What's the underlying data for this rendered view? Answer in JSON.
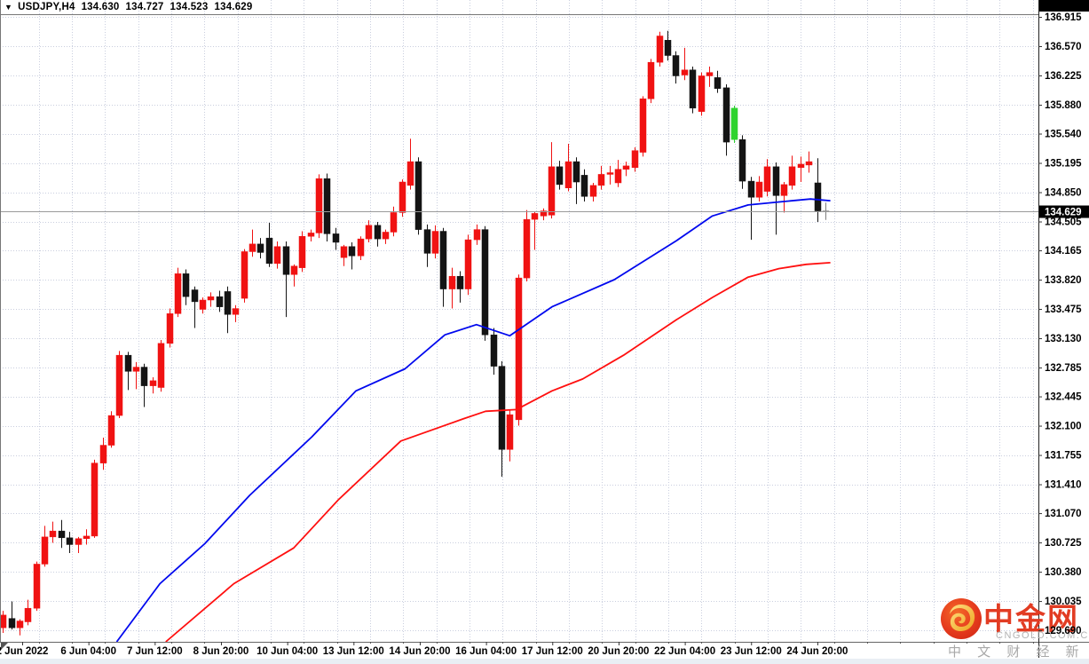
{
  "title": {
    "dropdown_icon": "▼",
    "symbol": "USDJPY,H4",
    "open": "134.630",
    "high": "134.727",
    "low": "134.523",
    "close": "134.629"
  },
  "price_axis": {
    "labels": [
      "136.915",
      "136.570",
      "136.225",
      "135.880",
      "135.540",
      "135.195",
      "134.850",
      "134.505",
      "134.165",
      "133.820",
      "133.475",
      "133.130",
      "132.785",
      "132.445",
      "132.100",
      "131.755",
      "131.410",
      "131.070",
      "130.725",
      "130.380",
      "130.035",
      "129.690"
    ],
    "current_price_tag": "134.629"
  },
  "time_axis": {
    "labels": [
      "2 Jun 2022",
      "6 Jun 04:00",
      "7 Jun 12:00",
      "8 Jun 20:00",
      "10 Jun 04:00",
      "13 Jun 12:00",
      "14 Jun 20:00",
      "16 Jun 04:00",
      "17 Jun 12:00",
      "20 Jun 20:00",
      "22 Jun 04:00",
      "23 Jun 12:00",
      "24 Jun 20:00"
    ]
  },
  "watermark": {
    "brand": "中金网",
    "domain": "CNGOLD.COM.CN",
    "tagline": "中 文 财 经 新 媒 体"
  },
  "colors": {
    "up_candle": "#f01212",
    "down_candle": "#141414",
    "special_candle": "#2fd32f",
    "doji_candle": "#808080",
    "ma_fast": "#0008ee",
    "ma_slow": "#ff0f0f",
    "grid": "#c9cede",
    "border": "#777777",
    "current_price_line": "#9a9a9a",
    "tag_bg": "#000000",
    "tag_text": "#ffffff",
    "brand_red": "#e23c23",
    "grey_text": "#b2b2b2",
    "bottom_strip": "#e9eef4"
  },
  "chart_data": {
    "type": "candlestick",
    "symbol": "USDJPY",
    "timeframe": "H4",
    "price_range": [
      129.55,
      136.96
    ],
    "date_range": [
      "2 Jun 2022",
      "24 Jun 2022 20:00"
    ],
    "grid": true,
    "candles": [
      [
        129.72,
        129.92,
        129.66,
        129.87
      ],
      [
        129.83,
        130.03,
        129.7,
        129.72
      ],
      [
        129.72,
        129.82,
        129.63,
        129.8
      ],
      [
        129.79,
        130.05,
        129.75,
        129.95
      ],
      [
        129.95,
        130.5,
        129.92,
        130.47
      ],
      [
        130.47,
        130.92,
        130.44,
        130.79
      ],
      [
        130.79,
        130.97,
        130.72,
        130.86
      ],
      [
        130.86,
        130.99,
        130.66,
        130.78
      ],
      [
        130.78,
        130.85,
        130.6,
        130.7
      ],
      [
        130.7,
        130.79,
        130.6,
        130.77
      ],
      [
        130.77,
        130.88,
        130.7,
        130.8
      ],
      [
        130.8,
        131.7,
        130.78,
        131.66
      ],
      [
        131.66,
        131.96,
        131.58,
        131.87
      ],
      [
        131.87,
        132.27,
        131.84,
        132.22
      ],
      [
        132.22,
        132.98,
        132.19,
        132.93
      ],
      [
        132.93,
        132.97,
        132.52,
        132.74
      ],
      [
        132.74,
        132.85,
        132.53,
        132.79
      ],
      [
        132.79,
        132.83,
        132.32,
        132.57
      ],
      [
        132.57,
        132.67,
        132.48,
        132.63
      ],
      [
        132.55,
        133.11,
        132.5,
        133.07
      ],
      [
        133.07,
        133.48,
        133.02,
        133.42
      ],
      [
        133.42,
        133.96,
        133.38,
        133.89
      ],
      [
        133.89,
        133.94,
        133.52,
        133.62
      ],
      [
        133.7,
        133.74,
        133.25,
        133.56
      ],
      [
        133.47,
        133.61,
        133.42,
        133.58
      ],
      [
        133.58,
        133.67,
        133.5,
        133.62
      ],
      [
        133.62,
        133.69,
        133.44,
        133.5
      ],
      [
        133.68,
        133.74,
        133.19,
        133.41
      ],
      [
        133.41,
        133.52,
        133.32,
        133.48
      ],
      [
        133.6,
        134.18,
        133.55,
        134.15
      ],
      [
        134.15,
        134.41,
        134.09,
        134.24
      ],
      [
        134.24,
        134.31,
        134.07,
        134.14
      ],
      [
        134.31,
        134.49,
        133.97,
        134.01
      ],
      [
        134.01,
        134.27,
        133.95,
        134.21
      ],
      [
        134.21,
        134.27,
        133.38,
        133.88
      ],
      [
        133.88,
        134.0,
        133.74,
        133.98
      ],
      [
        133.96,
        134.39,
        133.91,
        134.33
      ],
      [
        134.33,
        134.41,
        134.27,
        134.37
      ],
      [
        134.37,
        135.06,
        134.31,
        135.01
      ],
      [
        135.01,
        135.07,
        134.27,
        134.36
      ],
      [
        134.36,
        134.43,
        134.17,
        134.26
      ],
      [
        134.08,
        134.23,
        133.98,
        134.21
      ],
      [
        134.21,
        134.26,
        133.94,
        134.1
      ],
      [
        134.1,
        134.33,
        134.05,
        134.3
      ],
      [
        134.3,
        134.52,
        134.26,
        134.46
      ],
      [
        134.46,
        134.5,
        134.21,
        134.3
      ],
      [
        134.3,
        134.41,
        134.24,
        134.38
      ],
      [
        134.38,
        134.68,
        134.33,
        134.61
      ],
      [
        134.61,
        135.0,
        134.56,
        134.97
      ],
      [
        134.93,
        135.48,
        134.88,
        135.21
      ],
      [
        135.21,
        135.26,
        134.35,
        134.41
      ],
      [
        134.41,
        134.47,
        133.97,
        134.13
      ],
      [
        134.13,
        134.46,
        134.07,
        134.39
      ],
      [
        134.39,
        134.43,
        133.5,
        133.71
      ],
      [
        133.71,
        133.96,
        133.48,
        133.86
      ],
      [
        133.86,
        133.92,
        133.55,
        133.71
      ],
      [
        133.71,
        134.35,
        133.64,
        134.29
      ],
      [
        134.29,
        134.47,
        134.23,
        134.41
      ],
      [
        134.41,
        134.45,
        133.1,
        133.17
      ],
      [
        133.17,
        133.25,
        132.7,
        132.8
      ],
      [
        132.8,
        132.86,
        131.5,
        131.82
      ],
      [
        131.82,
        132.28,
        131.68,
        132.23
      ],
      [
        132.17,
        133.88,
        132.1,
        133.84
      ],
      [
        133.84,
        134.64,
        133.8,
        134.53
      ],
      [
        134.53,
        134.62,
        134.17,
        134.6
      ],
      [
        134.57,
        134.66,
        134.52,
        134.63
      ],
      [
        134.58,
        135.44,
        134.54,
        135.15
      ],
      [
        135.15,
        135.22,
        134.88,
        134.94
      ],
      [
        134.9,
        135.42,
        134.86,
        135.21
      ],
      [
        135.21,
        135.26,
        134.71,
        134.97
      ],
      [
        135.05,
        135.12,
        134.74,
        134.8
      ],
      [
        134.8,
        134.96,
        134.74,
        134.93
      ],
      [
        134.93,
        135.16,
        134.88,
        135.06
      ],
      [
        135.06,
        135.16,
        134.94,
        135.08
      ],
      [
        134.96,
        135.23,
        134.91,
        135.12
      ],
      [
        135.12,
        135.21,
        135.04,
        135.16
      ],
      [
        135.14,
        135.38,
        135.09,
        135.34
      ],
      [
        135.32,
        135.98,
        135.27,
        135.95
      ],
      [
        135.95,
        136.42,
        135.9,
        136.38
      ],
      [
        136.38,
        136.74,
        136.33,
        136.69
      ],
      [
        136.64,
        136.75,
        136.4,
        136.46
      ],
      [
        136.46,
        136.51,
        136.13,
        136.22
      ],
      [
        136.23,
        136.55,
        136.17,
        136.29
      ],
      [
        136.29,
        136.33,
        135.78,
        135.84
      ],
      [
        135.8,
        136.26,
        135.75,
        136.22
      ],
      [
        136.22,
        136.33,
        136.09,
        136.26
      ],
      [
        136.2,
        136.28,
        136.02,
        136.07
      ],
      [
        136.08,
        136.12,
        135.28,
        135.44
      ],
      [
        135.84,
        135.87,
        135.43,
        135.47
      ],
      [
        135.47,
        135.52,
        134.89,
        134.98
      ],
      [
        134.98,
        135.03,
        134.29,
        134.79
      ],
      [
        134.79,
        135.04,
        134.74,
        134.97
      ],
      [
        134.86,
        135.24,
        134.8,
        135.15
      ],
      [
        135.15,
        135.2,
        134.35,
        134.81
      ],
      [
        134.81,
        134.97,
        134.61,
        134.94
      ],
      [
        134.93,
        135.28,
        134.88,
        135.15
      ],
      [
        135.14,
        135.27,
        134.97,
        135.18
      ],
      [
        135.17,
        135.33,
        135.08,
        135.21
      ],
      [
        134.96,
        135.25,
        134.5,
        134.63
      ],
      [
        134.63,
        134.727,
        134.523,
        134.629
      ]
    ],
    "special_candle_colors": {
      "88": "special_candle",
      "99": "doji_candle"
    },
    "ma_fast_points": [
      [
        13.7,
        129.55
      ],
      [
        18.9,
        130.24
      ],
      [
        24.3,
        130.71
      ],
      [
        29.7,
        131.28
      ],
      [
        37.2,
        131.97
      ],
      [
        42.5,
        132.51
      ],
      [
        48.4,
        132.77
      ],
      [
        53.2,
        133.17
      ],
      [
        57.0,
        133.29
      ],
      [
        61.0,
        133.16
      ],
      [
        66.1,
        133.5
      ],
      [
        73.6,
        133.82
      ],
      [
        81.1,
        134.28
      ],
      [
        85.4,
        134.57
      ],
      [
        89.7,
        134.7
      ],
      [
        94.0,
        134.74
      ],
      [
        97.2,
        134.77
      ],
      [
        99.6,
        134.75
      ]
    ],
    "ma_slow_points": [
      [
        19.6,
        129.55
      ],
      [
        27.8,
        130.24
      ],
      [
        35.0,
        130.66
      ],
      [
        40.4,
        131.23
      ],
      [
        47.9,
        131.92
      ],
      [
        55.4,
        132.18
      ],
      [
        58.1,
        132.27
      ],
      [
        61.8,
        132.29
      ],
      [
        66.1,
        132.51
      ],
      [
        69.8,
        132.65
      ],
      [
        74.7,
        132.93
      ],
      [
        81.1,
        133.35
      ],
      [
        85.4,
        133.61
      ],
      [
        89.7,
        133.85
      ],
      [
        93.4,
        133.95
      ],
      [
        96.7,
        134.0
      ],
      [
        99.6,
        134.02
      ]
    ],
    "current_price": 134.629
  }
}
